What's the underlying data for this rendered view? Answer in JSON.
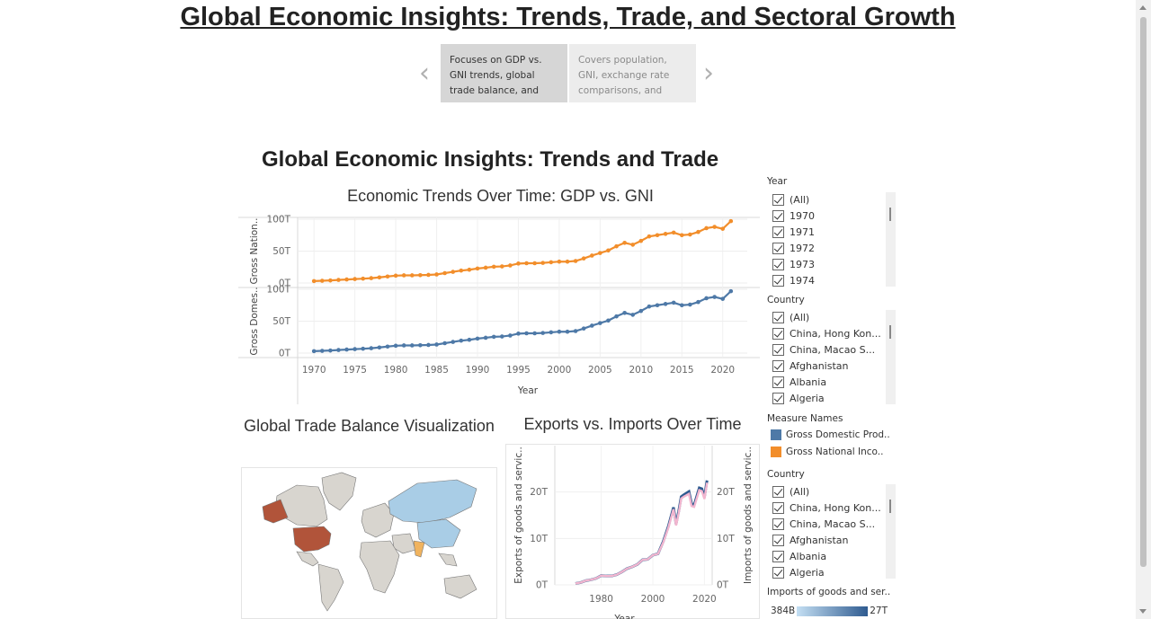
{
  "header": {
    "title": "Global Economic Insights: Trends, Trade, and Sectoral Growth"
  },
  "story": {
    "prev_icon": "chevron-left-icon",
    "next_icon": "chevron-right-icon",
    "points": [
      {
        "text": "Focuses on GDP vs. GNI trends, global trade balance, and",
        "state": "active"
      },
      {
        "text": "Covers population, GNI, exchange rate comparisons, and",
        "state": "inactive"
      }
    ]
  },
  "dashboard": {
    "title": "Global Economic Insights: Trends and Trade"
  },
  "filters": {
    "year": {
      "label": "Year",
      "items": [
        "(All)",
        "1970",
        "1971",
        "1972",
        "1973",
        "1974"
      ]
    },
    "country1": {
      "label": "Country",
      "items": [
        "(All)",
        "China, Hong Kon...",
        "China, Macao S...",
        "Afghanistan",
        "Albania",
        "Algeria"
      ]
    },
    "country2": {
      "label": "Country",
      "items": [
        "(All)",
        "China, Hong Kon...",
        "China, Macao S...",
        "Afghanistan",
        "Albania",
        "Algeria"
      ]
    },
    "measure_names": {
      "label": "Measure Names",
      "items": [
        {
          "label": "Gross Domestic Prod..",
          "color": "#4e79a7"
        },
        {
          "label": "Gross National Inco..",
          "color": "#f28e2b"
        }
      ]
    },
    "imports_ramp": {
      "label": "Imports of goods and ser..",
      "min": "384B",
      "max": "27T"
    }
  },
  "trend_chart": {
    "title": "Economic Trends Over Time: GDP vs. GNI",
    "xlabel": "Year",
    "top_ylabel": "Gross Nation..",
    "bottom_ylabel": "Gross Domes..",
    "yticks": [
      "100T",
      "50T",
      "0T"
    ],
    "xticks": [
      "1970",
      "1975",
      "1980",
      "1985",
      "1990",
      "1995",
      "2000",
      "2005",
      "2010",
      "2015",
      "2020"
    ]
  },
  "map_chart": {
    "title": "Global Trade Balance Visualization"
  },
  "trade_chart": {
    "title": "Exports vs. Imports Over Time",
    "left_ylabel": "Exports of goods and servic..",
    "right_ylabel": "Imports of goods and servic..",
    "yticks": [
      "20T",
      "10T",
      "0T"
    ],
    "xticks": [
      "1980",
      "2000",
      "2020"
    ],
    "xlabel": "Year"
  },
  "chart_data": [
    {
      "type": "line",
      "title": "Economic Trends Over Time: GDP vs. GNI",
      "xlabel": "Year",
      "x": [
        1970,
        1971,
        1972,
        1973,
        1974,
        1975,
        1976,
        1977,
        1978,
        1979,
        1980,
        1981,
        1982,
        1983,
        1984,
        1985,
        1986,
        1987,
        1988,
        1989,
        1990,
        1991,
        1992,
        1993,
        1994,
        1995,
        1996,
        1997,
        1998,
        1999,
        2000,
        2001,
        2002,
        2003,
        2004,
        2005,
        2006,
        2007,
        2008,
        2009,
        2010,
        2011,
        2012,
        2013,
        2014,
        2015,
        2016,
        2017,
        2018,
        2019,
        2020,
        2021
      ],
      "ylim": [
        0,
        100
      ],
      "series": [
        {
          "name": "Gross National Inco..",
          "color": "#f28e2b",
          "values": [
            3,
            3.5,
            4,
            4.8,
            5.5,
            6.2,
            6.8,
            7.6,
            8.8,
            10.2,
            11.5,
            12,
            12,
            12.3,
            12.7,
            13.4,
            15.5,
            17.5,
            19.5,
            20.8,
            22.7,
            24,
            25.5,
            26,
            27.5,
            30.5,
            31,
            31,
            31.5,
            32.5,
            33.5,
            33.5,
            34.5,
            38.5,
            43,
            47,
            51,
            57.5,
            63,
            60,
            66,
            73,
            75,
            77,
            79,
            75,
            76,
            80,
            86,
            88,
            85,
            97
          ]
        },
        {
          "name": "Gross Domestic Prod..",
          "color": "#4e79a7",
          "values": [
            3,
            3.5,
            4,
            4.8,
            5.5,
            6.2,
            6.8,
            7.6,
            8.8,
            10.2,
            11.5,
            12,
            12,
            12.3,
            12.7,
            13.4,
            15.5,
            17.5,
            19.5,
            20.8,
            22.7,
            24,
            25.5,
            26,
            27.5,
            30.5,
            31,
            31,
            31.5,
            32.5,
            33.5,
            33.5,
            34.5,
            38.5,
            43,
            47,
            51,
            57.5,
            63,
            60,
            66,
            73,
            75,
            77,
            79,
            75,
            76,
            80,
            86,
            88,
            85,
            97
          ]
        }
      ]
    },
    {
      "type": "line",
      "title": "Exports vs. Imports Over Time",
      "xlabel": "Year",
      "x": [
        1970,
        1972,
        1974,
        1976,
        1978,
        1980,
        1982,
        1984,
        1986,
        1988,
        1990,
        1992,
        1994,
        1996,
        1998,
        2000,
        2002,
        2004,
        2006,
        2008,
        2009,
        2010,
        2011,
        2012,
        2014,
        2015,
        2016,
        2018,
        2019,
        2020,
        2021
      ],
      "ylim": [
        0,
        30
      ],
      "series": [
        {
          "name": "Exports of goods and servic..",
          "color": "#2f5b90",
          "values": [
            0.3,
            0.5,
            0.9,
            1.1,
            1.4,
            2.0,
            1.9,
            1.9,
            2.2,
            2.8,
            3.5,
            3.9,
            4.4,
            5.4,
            5.5,
            6.4,
            6.7,
            9.3,
            12.6,
            16.7,
            13.1,
            15.8,
            19.0,
            19.4,
            20.1,
            17.5,
            17.2,
            20.9,
            20.7,
            18.9,
            22.5
          ]
        },
        {
          "name": "Imports of goods and servic..",
          "color": "#f2b6cf",
          "values": [
            0.3,
            0.5,
            0.9,
            1.1,
            1.4,
            2.0,
            1.9,
            1.9,
            2.2,
            2.8,
            3.5,
            3.9,
            4.4,
            5.4,
            5.5,
            6.4,
            6.7,
            9.1,
            12.3,
            16.3,
            12.8,
            15.4,
            18.6,
            19.0,
            19.6,
            17.0,
            16.8,
            20.4,
            20.2,
            18.5,
            22.0
          ]
        }
      ]
    }
  ]
}
